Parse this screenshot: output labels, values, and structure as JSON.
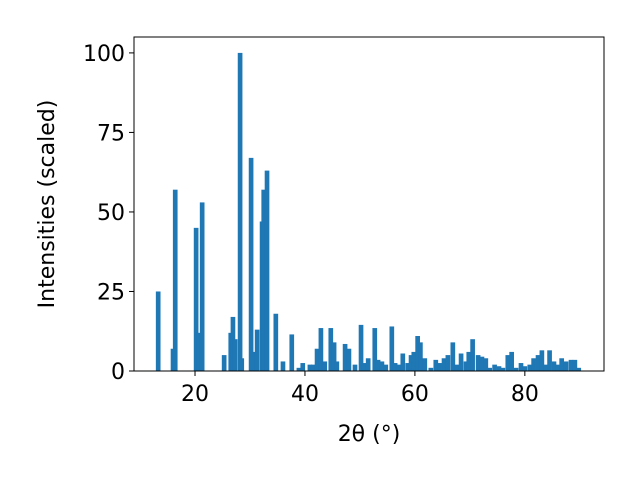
{
  "chart_data": {
    "type": "bar",
    "x_label": "2θ (°)",
    "y_label": "Intensities (scaled)",
    "color": "#1f77b4",
    "x": [
      13.3,
      16.0,
      16.4,
      20.2,
      20.7,
      21.3,
      25.3,
      26.5,
      26.9,
      27.3,
      28.2,
      28.5,
      30.2,
      30.7,
      31.3,
      32.2,
      32.5,
      33.1,
      34.7,
      36.0,
      37.6,
      38.9,
      39.6,
      40.9,
      41.5,
      42.2,
      42.9,
      43.6,
      44.7,
      45.3,
      45.8,
      47.3,
      48.0,
      49.1,
      50.2,
      50.7,
      51.5,
      52.7,
      53.3,
      54.0,
      54.7,
      55.8,
      56.4,
      57.1,
      57.8,
      58.7,
      59.3,
      59.8,
      60.5,
      61.0,
      61.8,
      62.9,
      63.8,
      64.5,
      65.3,
      66.0,
      66.9,
      67.6,
      68.4,
      69.3,
      69.8,
      70.5,
      71.5,
      72.2,
      72.9,
      73.6,
      74.5,
      75.3,
      76.0,
      76.9,
      77.6,
      78.4,
      79.3,
      80.0,
      80.9,
      81.6,
      82.4,
      83.1,
      83.8,
      84.5,
      85.3,
      86.0,
      86.7,
      87.5,
      88.4,
      89.1,
      89.8
    ],
    "values": [
      25,
      7,
      57,
      45,
      12,
      53,
      5,
      12,
      17,
      10,
      100,
      4,
      67,
      6,
      13,
      47,
      57,
      63,
      18,
      3,
      11.5,
      1,
      2.5,
      2,
      2,
      7,
      13.5,
      3,
      13.5,
      9,
      3,
      8.5,
      7,
      2,
      14.5,
      2.5,
      4,
      13.5,
      3.5,
      3,
      2,
      14,
      2.5,
      2,
      5.5,
      2.5,
      5,
      6,
      11,
      9,
      4,
      1,
      3.5,
      2.5,
      4,
      5,
      9,
      2,
      5.5,
      3,
      6,
      10,
      5,
      4.5,
      4,
      1,
      2,
      1.5,
      1,
      5,
      6,
      1,
      2.5,
      1.5,
      2,
      4,
      5,
      6.5,
      2,
      6.5,
      3,
      2,
      4,
      3,
      3.5,
      3.5,
      1
    ],
    "xlim": [
      8.9,
      94.4
    ],
    "ylim": [
      0,
      105
    ],
    "xticks": [
      20,
      40,
      60,
      80
    ],
    "yticks": [
      0,
      25,
      50,
      75,
      100
    ]
  }
}
